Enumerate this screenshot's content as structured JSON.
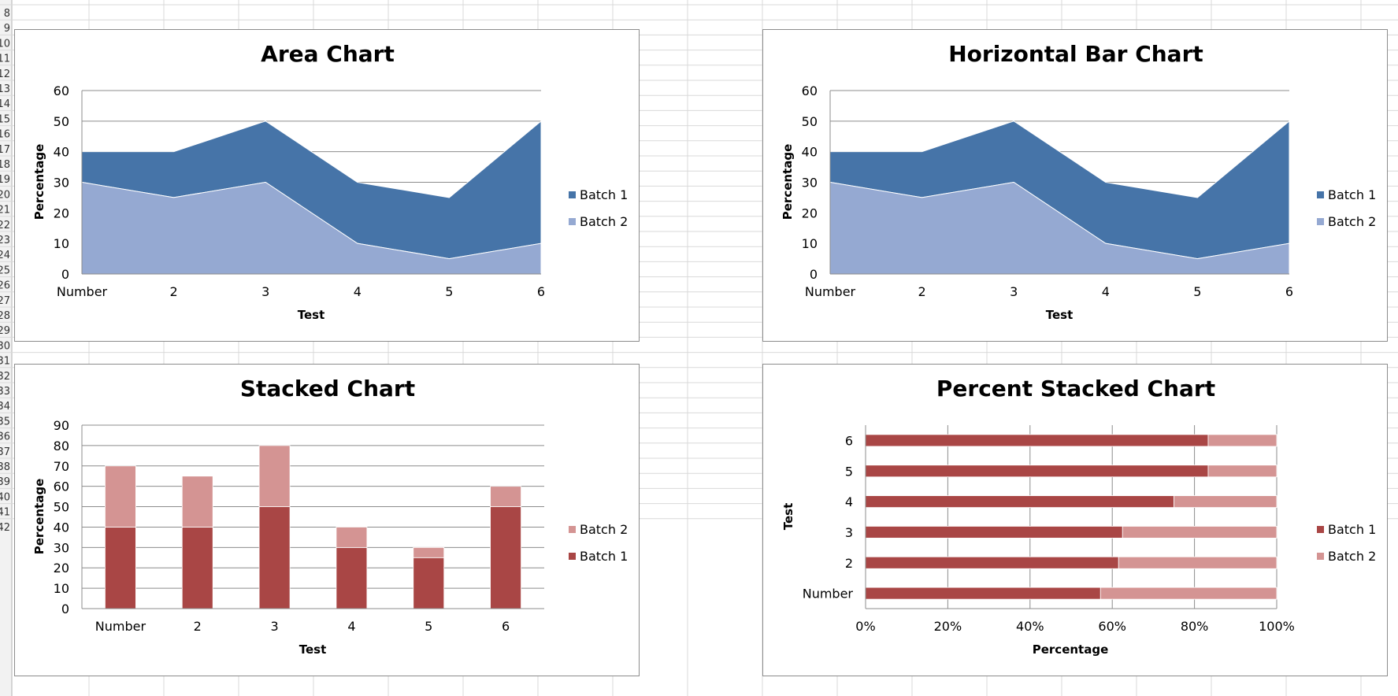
{
  "row_headers": [
    "8",
    "9",
    "10",
    "11",
    "12",
    "13",
    "14",
    "15",
    "16",
    "17",
    "18",
    "19",
    "20",
    "21",
    "22",
    "23",
    "24",
    "25",
    "26",
    "27",
    "28",
    "29",
    "30",
    "31",
    "32",
    "33",
    "34",
    "35",
    "36",
    "37",
    "38",
    "39",
    "40",
    "41",
    "42"
  ],
  "colors": {
    "batch1_blue": "#4674a8",
    "batch2_blue": "#95a9d2",
    "batch1_red": "#a94645",
    "batch2_red": "#d49493",
    "gridline": "#8c8c8c"
  },
  "chart_data": [
    {
      "id": "area",
      "type": "area",
      "title": "Area Chart",
      "xlabel": "Test",
      "ylabel": "Percentage",
      "categories": [
        "Number",
        "2",
        "3",
        "4",
        "5",
        "6"
      ],
      "series": [
        {
          "name": "Batch 2",
          "values": [
            30,
            25,
            30,
            10,
            5,
            10
          ]
        },
        {
          "name": "Batch 1",
          "values": [
            10,
            15,
            20,
            20,
            20,
            40
          ]
        }
      ],
      "ylim": [
        0,
        60
      ],
      "yticks": [
        "0",
        "10",
        "20",
        "30",
        "40",
        "50",
        "60"
      ],
      "legend": [
        "Batch 1",
        "Batch 2"
      ]
    },
    {
      "id": "hbar",
      "type": "area",
      "title": "Horizontal Bar Chart",
      "xlabel": "Test",
      "ylabel": "Percentage",
      "categories": [
        "Number",
        "2",
        "3",
        "4",
        "5",
        "6"
      ],
      "series": [
        {
          "name": "Batch 2",
          "values": [
            30,
            25,
            30,
            10,
            5,
            10
          ]
        },
        {
          "name": "Batch 1",
          "values": [
            10,
            15,
            20,
            20,
            20,
            40
          ]
        }
      ],
      "ylim": [
        0,
        60
      ],
      "yticks": [
        "0",
        "10",
        "20",
        "30",
        "40",
        "50",
        "60"
      ],
      "legend": [
        "Batch 1",
        "Batch 2"
      ]
    },
    {
      "id": "stacked",
      "type": "bar",
      "title": "Stacked Chart",
      "xlabel": "Test",
      "ylabel": "Percentage",
      "categories": [
        "Number",
        "2",
        "3",
        "4",
        "5",
        "6"
      ],
      "series": [
        {
          "name": "Batch 1",
          "values": [
            40,
            40,
            50,
            30,
            25,
            50
          ]
        },
        {
          "name": "Batch 2",
          "values": [
            30,
            25,
            30,
            10,
            5,
            10
          ]
        }
      ],
      "ylim": [
        0,
        90
      ],
      "yticks": [
        "0",
        "10",
        "20",
        "30",
        "40",
        "50",
        "60",
        "70",
        "80",
        "90"
      ],
      "legend": [
        "Batch 2",
        "Batch 1"
      ]
    },
    {
      "id": "percent",
      "type": "bar",
      "title": "Percent Stacked Chart",
      "xlabel": "Percentage",
      "ylabel": "Test",
      "categories": [
        "Number",
        "2",
        "3",
        "4",
        "5",
        "6"
      ],
      "series": [
        {
          "name": "Batch 1",
          "values": [
            40,
            40,
            50,
            30,
            25,
            50
          ]
        },
        {
          "name": "Batch 2",
          "values": [
            30,
            25,
            30,
            10,
            5,
            10
          ]
        }
      ],
      "xlim": [
        0,
        100
      ],
      "xticks": [
        "0%",
        "20%",
        "40%",
        "60%",
        "80%",
        "100%"
      ],
      "legend": [
        "Batch 1",
        "Batch 2"
      ]
    }
  ]
}
